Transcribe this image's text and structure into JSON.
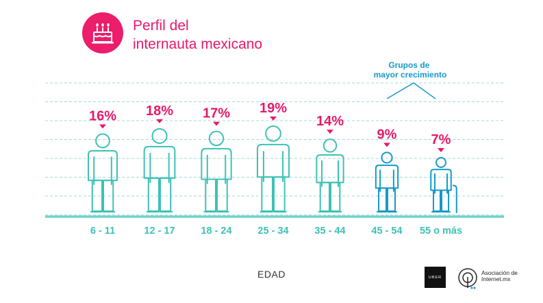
{
  "header": {
    "title": "Perfil del\ninternauta mexicano",
    "icon": "birthday-cake-icon"
  },
  "annotation": {
    "text": "Grupos de\nmayor crecimiento"
  },
  "chart_data": {
    "type": "bar",
    "categories": [
      "6 - 11",
      "12 - 17",
      "18 - 24",
      "25 - 34",
      "35 - 44",
      "45 - 54",
      "55 o más"
    ],
    "values": [
      16,
      18,
      17,
      19,
      14,
      9,
      7
    ],
    "value_labels": [
      "16%",
      "18%",
      "17%",
      "19%",
      "14%",
      "9%",
      "7%"
    ],
    "unit": "%",
    "xlabel": "EDAD",
    "ylabel": "",
    "highlighted": [
      "45 - 54",
      "55 o más"
    ],
    "grid": true,
    "colors": {
      "accent": "#e8186a",
      "figure": "#3dc1b4",
      "highlight": "#1599c9",
      "baseline": "#6fd3ca",
      "grid": "#9fdcd6"
    }
  },
  "footer": {
    "uber": "UBER",
    "asociacion": "Asociación de\nInternet.mx"
  }
}
